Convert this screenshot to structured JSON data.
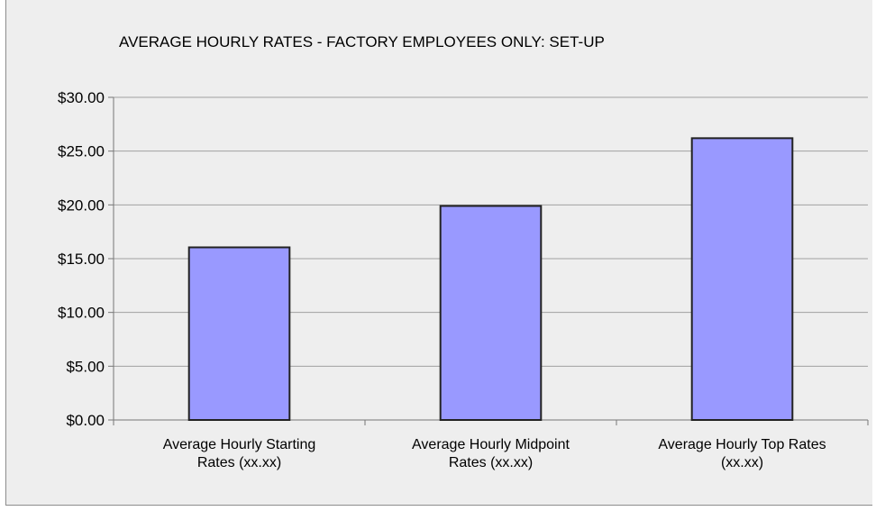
{
  "chart_data": {
    "type": "bar",
    "title": "AVERAGE HOURLY RATES - FACTORY EMPLOYEES ONLY: SET-UP",
    "xlabel": "",
    "ylabel": "",
    "categories": [
      [
        "Average Hourly Starting",
        "Rates (xx.xx)"
      ],
      [
        "Average Hourly Midpoint",
        "Rates (xx.xx)"
      ],
      [
        "Average Hourly Top Rates",
        "(xx.xx)"
      ]
    ],
    "values": [
      16.05,
      19.9,
      26.2
    ],
    "ylim": [
      0,
      30
    ],
    "yticks": [
      0,
      5,
      10,
      15,
      20,
      25,
      30
    ],
    "ytick_labels": [
      "$0.00",
      "$5.00",
      "$10.00",
      "$15.00",
      "$20.00",
      "$25.00",
      "$30.00"
    ],
    "grid": true,
    "legend": "none",
    "colors": {
      "bar_fill": "#9999ff",
      "bar_stroke": "#222222",
      "grid": "#a0a0a0",
      "background": "#eeeeee"
    }
  }
}
